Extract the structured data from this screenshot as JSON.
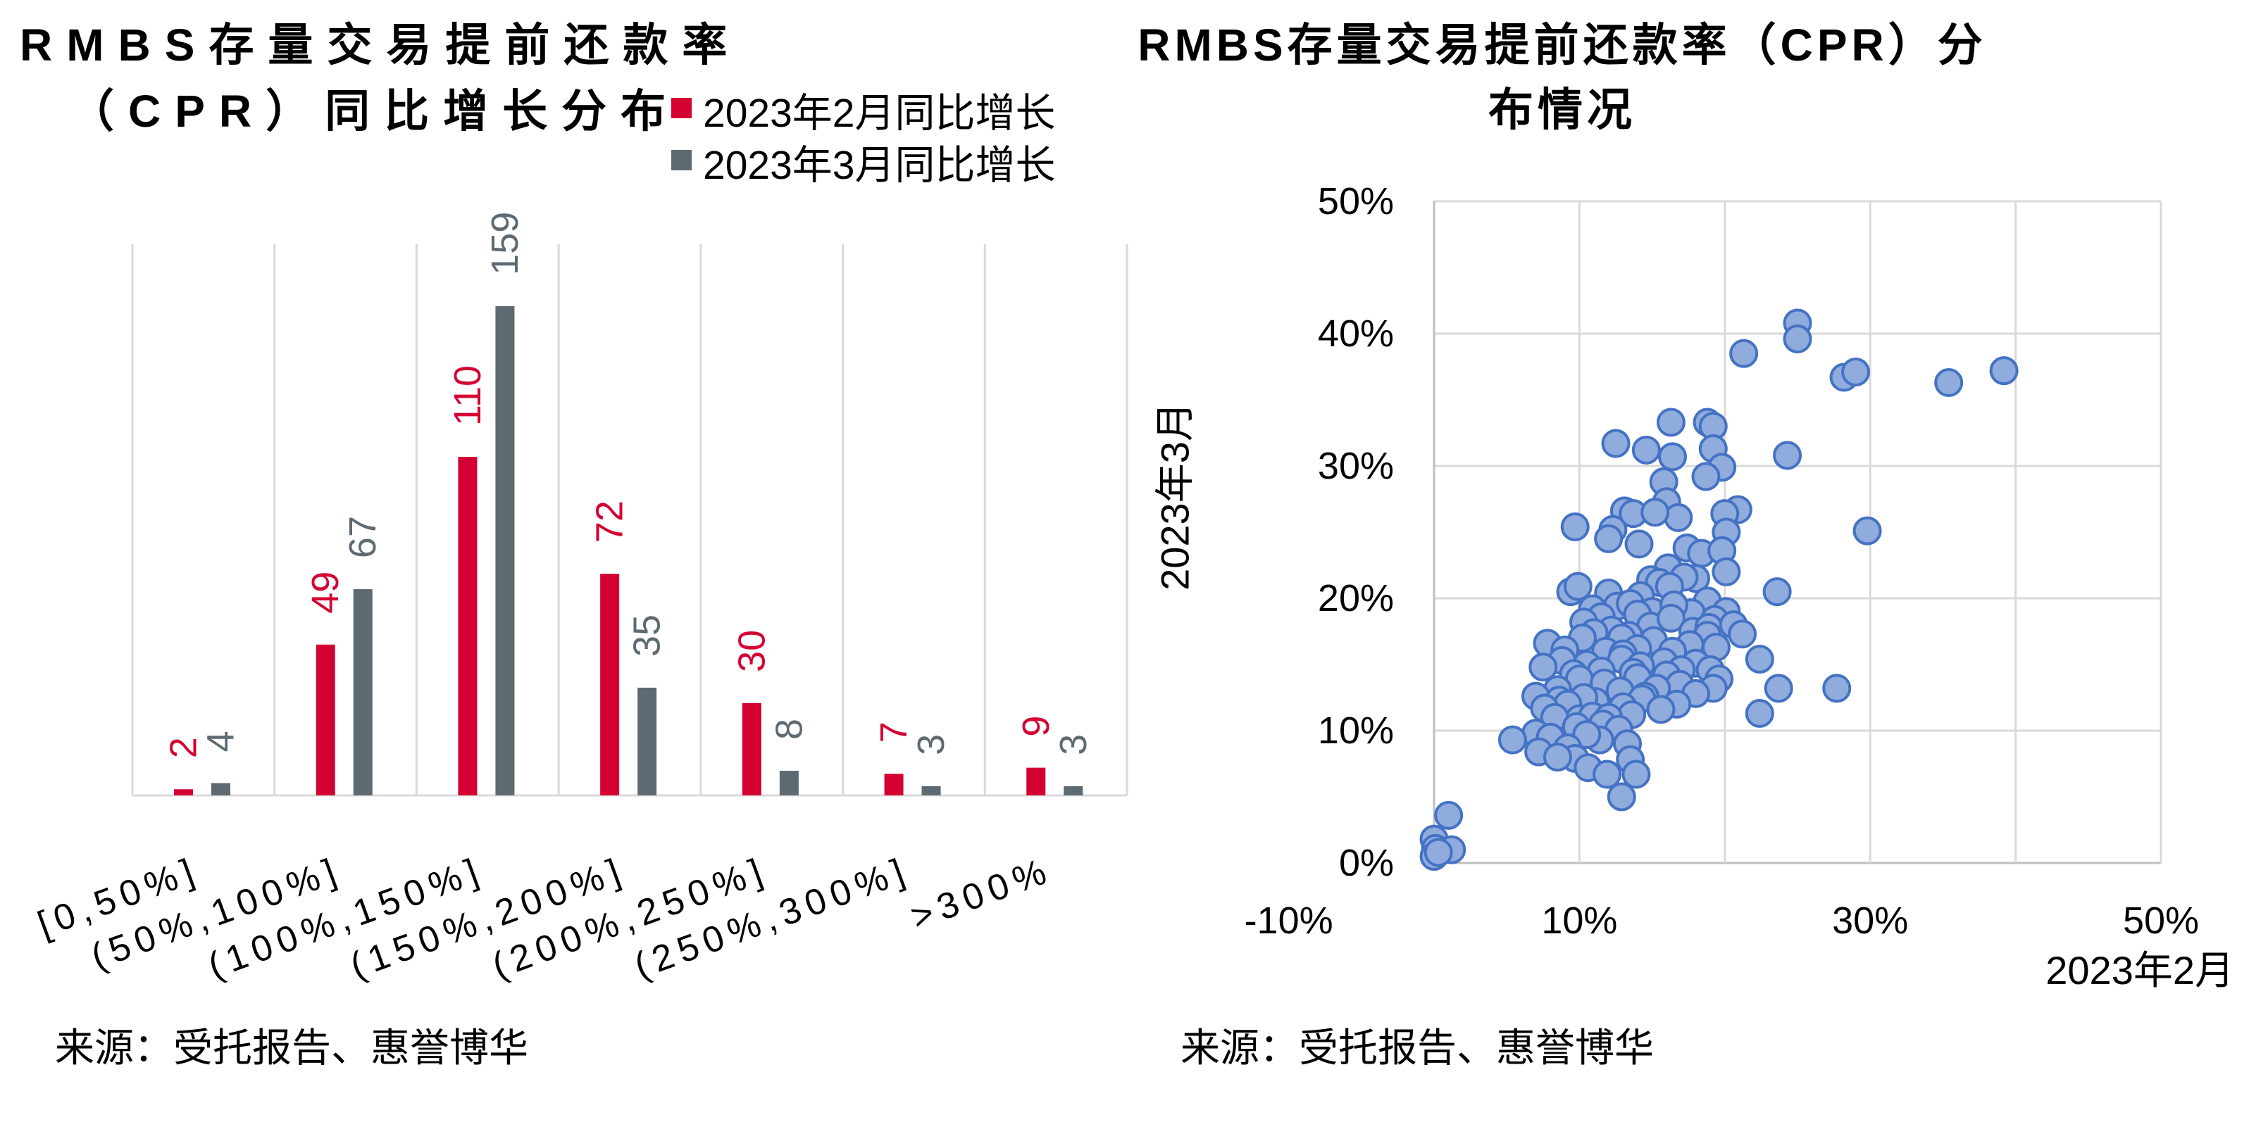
{
  "chart_data": [
    {
      "type": "bar",
      "title_lines": [
        "RMBS存量交易提前还款率",
        "（CPR）同比增长分布"
      ],
      "categories": [
        "[0,50%]",
        "(50%,100%]",
        "(100%,150%]",
        "(150%,200%]",
        "(200%,250%]",
        "(250%,300%]",
        ">300%"
      ],
      "series": [
        {
          "name": "2023年2月同比增长",
          "values": [
            2,
            49,
            110,
            72,
            30,
            7,
            9
          ],
          "color": "#d50032"
        },
        {
          "name": "2023年3月同比增长",
          "values": [
            4,
            67,
            159,
            35,
            8,
            3,
            3
          ],
          "color": "#5e6a71"
        }
      ],
      "xlabel": "",
      "ylabel": "",
      "ylim": [
        0,
        180
      ],
      "grid": true,
      "legend": "top-right",
      "data_labels": true,
      "source": "来源：受托报告、惠誉博华"
    },
    {
      "type": "scatter",
      "title_lines": [
        "RMBS存量交易提前还款率（CPR）分",
        "布情况"
      ],
      "xlabel": "2023年2月",
      "ylabel": "2023年3月",
      "xlim": [
        0,
        50
      ],
      "ylim": [
        0,
        50
      ],
      "x_ticks": [
        -10,
        10,
        30,
        50
      ],
      "x_tick_labels": [
        "-10%",
        "10%",
        "30%",
        "50%"
      ],
      "y_ticks": [
        0,
        10,
        20,
        30,
        40,
        50
      ],
      "y_tick_labels": [
        "0%",
        "10%",
        "20%",
        "30%",
        "40%",
        "50%"
      ],
      "grid": true,
      "marker_color": "#8facdd",
      "marker_edge_color": "#4472c4",
      "points": [
        [
          25.0,
          40.8
        ],
        [
          25.0,
          39.6
        ],
        [
          21.3,
          38.5
        ],
        [
          28.2,
          36.7
        ],
        [
          29.0,
          37.1
        ],
        [
          35.4,
          36.3
        ],
        [
          39.2,
          37.2
        ],
        [
          24.3,
          30.8
        ],
        [
          29.8,
          25.1
        ],
        [
          12.5,
          31.7
        ],
        [
          16.3,
          33.3
        ],
        [
          18.8,
          33.3
        ],
        [
          19.2,
          33.0
        ],
        [
          14.6,
          31.2
        ],
        [
          16.4,
          30.7
        ],
        [
          19.2,
          31.3
        ],
        [
          19.8,
          29.9
        ],
        [
          18.7,
          29.2
        ],
        [
          15.8,
          28.8
        ],
        [
          16.0,
          27.3
        ],
        [
          13.1,
          26.6
        ],
        [
          13.7,
          26.4
        ],
        [
          16.8,
          26.1
        ],
        [
          15.2,
          26.5
        ],
        [
          20.9,
          26.7
        ],
        [
          20.0,
          26.4
        ],
        [
          9.7,
          25.4
        ],
        [
          12.3,
          25.2
        ],
        [
          12.0,
          24.5
        ],
        [
          14.1,
          24.1
        ],
        [
          20.1,
          25.0
        ],
        [
          17.4,
          23.8
        ],
        [
          18.4,
          23.4
        ],
        [
          19.8,
          23.6
        ],
        [
          16.1,
          22.3
        ],
        [
          14.9,
          21.4
        ],
        [
          20.1,
          22.0
        ],
        [
          18.0,
          21.5
        ],
        [
          15.5,
          21.2
        ],
        [
          17.2,
          21.6
        ],
        [
          9.4,
          20.5
        ],
        [
          9.9,
          20.9
        ],
        [
          12.0,
          20.4
        ],
        [
          14.2,
          20.2
        ],
        [
          16.2,
          20.9
        ],
        [
          18.8,
          19.8
        ],
        [
          23.6,
          20.5
        ],
        [
          10.9,
          19.2
        ],
        [
          12.6,
          19.4
        ],
        [
          20.1,
          19.0
        ],
        [
          17.7,
          18.9
        ],
        [
          13.5,
          19.6
        ],
        [
          15.0,
          19.0
        ],
        [
          11.5,
          18.6
        ],
        [
          16.5,
          19.5
        ],
        [
          19.3,
          18.4
        ],
        [
          14.0,
          18.8
        ],
        [
          10.3,
          18.2
        ],
        [
          14.9,
          17.9
        ],
        [
          16.3,
          18.5
        ],
        [
          12.2,
          17.6
        ],
        [
          17.8,
          17.5
        ],
        [
          13.4,
          17.2
        ],
        [
          18.9,
          17.8
        ],
        [
          11.0,
          17.4
        ],
        [
          20.6,
          18.0
        ],
        [
          7.8,
          16.6
        ],
        [
          12.9,
          17.0
        ],
        [
          21.2,
          17.3
        ],
        [
          18.8,
          17.2
        ],
        [
          10.2,
          17.0
        ],
        [
          15.1,
          16.8
        ],
        [
          17.6,
          16.5
        ],
        [
          19.4,
          16.3
        ],
        [
          14.0,
          16.2
        ],
        [
          11.8,
          16.0
        ],
        [
          16.4,
          16.0
        ],
        [
          9.0,
          16.1
        ],
        [
          13.0,
          15.8
        ],
        [
          8.8,
          15.3
        ],
        [
          12.9,
          15.4
        ],
        [
          15.8,
          15.2
        ],
        [
          22.4,
          15.4
        ],
        [
          7.5,
          14.8
        ],
        [
          10.5,
          15.0
        ],
        [
          14.2,
          14.9
        ],
        [
          18.0,
          15.1
        ],
        [
          17.0,
          14.6
        ],
        [
          11.5,
          14.5
        ],
        [
          16.0,
          14.2
        ],
        [
          13.7,
          14.4
        ],
        [
          19.0,
          14.6
        ],
        [
          9.6,
          14.3
        ],
        [
          10.0,
          13.9
        ],
        [
          14.0,
          14.0
        ],
        [
          19.6,
          13.9
        ],
        [
          19.2,
          13.2
        ],
        [
          23.7,
          13.2
        ],
        [
          27.7,
          13.2
        ],
        [
          11.7,
          13.6
        ],
        [
          16.9,
          13.5
        ],
        [
          12.8,
          13.0
        ],
        [
          15.3,
          13.2
        ],
        [
          8.5,
          13.1
        ],
        [
          18.0,
          12.8
        ],
        [
          14.5,
          12.6
        ],
        [
          7.0,
          12.6
        ],
        [
          8.6,
          12.3
        ],
        [
          11.1,
          12.2
        ],
        [
          14.3,
          12.4
        ],
        [
          16.7,
          12.0
        ],
        [
          10.3,
          12.5
        ],
        [
          13.0,
          11.8
        ],
        [
          15.6,
          11.6
        ],
        [
          9.2,
          12.0
        ],
        [
          7.6,
          11.7
        ],
        [
          10.0,
          10.9
        ],
        [
          10.9,
          11.1
        ],
        [
          13.6,
          11.2
        ],
        [
          22.4,
          11.3
        ],
        [
          12.0,
          11.0
        ],
        [
          8.3,
          11.0
        ],
        [
          11.6,
          10.5
        ],
        [
          7.0,
          9.8
        ],
        [
          9.8,
          10.3
        ],
        [
          12.7,
          10.1
        ],
        [
          11.4,
          9.3
        ],
        [
          5.4,
          9.3
        ],
        [
          8.0,
          9.5
        ],
        [
          10.5,
          9.7
        ],
        [
          13.3,
          9.0
        ],
        [
          7.2,
          8.4
        ],
        [
          9.2,
          8.7
        ],
        [
          9.7,
          7.9
        ],
        [
          13.5,
          7.8
        ],
        [
          10.6,
          7.2
        ],
        [
          11.9,
          6.7
        ],
        [
          13.9,
          6.7
        ],
        [
          12.9,
          5.0
        ],
        [
          8.5,
          8.0
        ],
        [
          1.0,
          3.6
        ],
        [
          0.0,
          1.8
        ],
        [
          0.1,
          1.1
        ],
        [
          1.2,
          1.0
        ],
        [
          0.0,
          0.5
        ],
        [
          0.3,
          0.8
        ]
      ],
      "source": "来源：受托报告、惠誉博华"
    }
  ]
}
